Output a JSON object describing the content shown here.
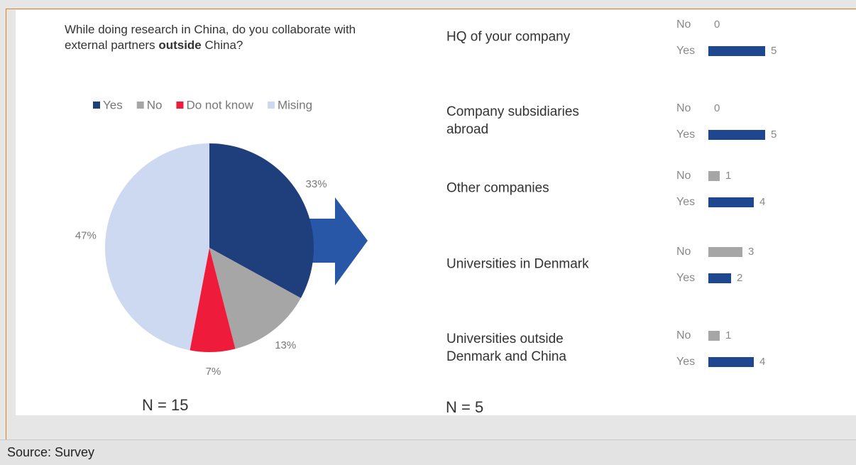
{
  "chart_data": [
    {
      "type": "pie",
      "title": [
        "While doing research in China, do you collaborate with external partners",
        "outside",
        "China?"
      ],
      "title_bold": 1,
      "categories": [
        "Yes",
        "No",
        "Do not know",
        "Mising"
      ],
      "values": [
        33,
        13,
        7,
        47
      ],
      "value_labels": [
        "33%",
        "13%",
        "7%",
        "47%"
      ],
      "colors": [
        "#1f3e7c",
        "#a6a6a6",
        "#ee1c3a",
        "#cdd9f0"
      ],
      "legend": "top",
      "note": "N = 15"
    },
    {
      "type": "bar",
      "orientation": "horizontal",
      "categories": [
        "HQ of your company",
        "Company subsidiaries abroad",
        "Other companies",
        "Universities in Denmark",
        "Universities outside Denmark and China"
      ],
      "series": [
        {
          "name": "No",
          "color": "#a6a6a6",
          "values": [
            0,
            0,
            1,
            3,
            1
          ]
        },
        {
          "name": "Yes",
          "color": "#1f4790",
          "values": [
            5,
            5,
            4,
            2,
            4
          ]
        }
      ],
      "xlim": [
        0,
        5
      ],
      "note": "N = 5"
    }
  ],
  "source": "Source: Survey"
}
